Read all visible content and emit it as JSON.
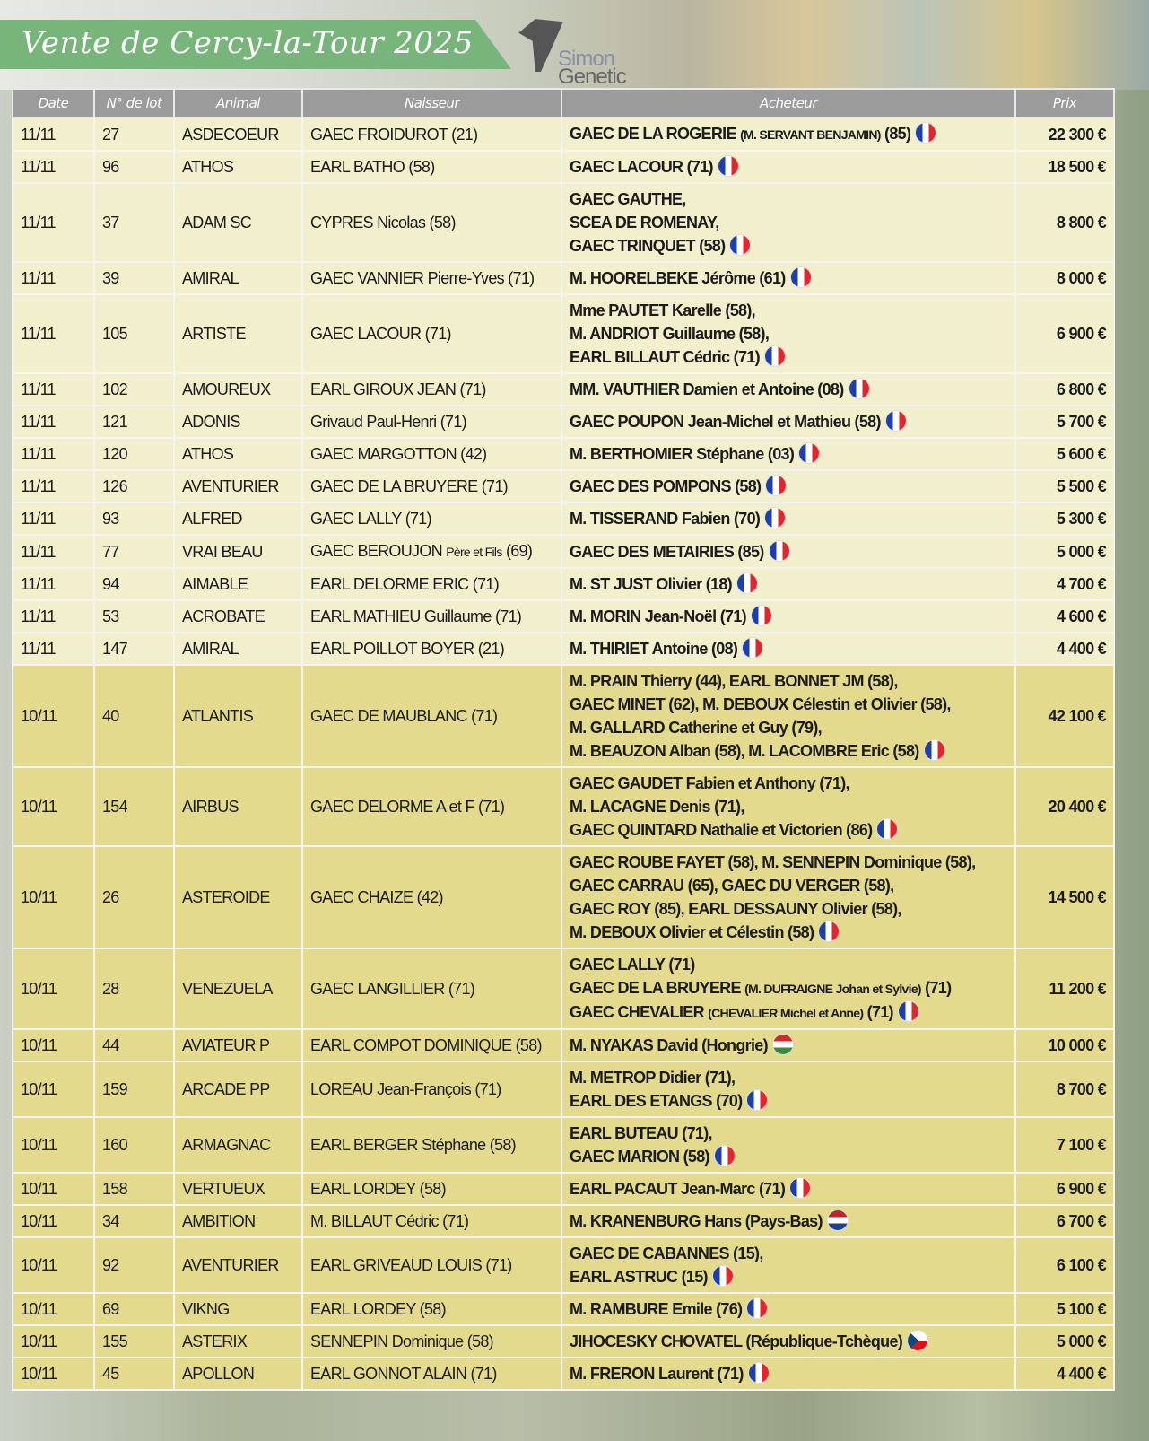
{
  "title": "Vente de Cercy-la-Tour 2025",
  "logo": {
    "line1": "Simon",
    "line2": "Genetic"
  },
  "colors": {
    "header": "#9b9b9b",
    "row_11_11": "#f1efcc",
    "row_10_11": "#e3da8d",
    "banner": "#78b57a"
  },
  "columns": [
    "Date",
    "N° de lot",
    "Animal",
    "Naisseur",
    "Acheteur",
    "Prix"
  ],
  "rows": [
    {
      "date": "11/11",
      "lot": "27",
      "animal": "ASDECOEUR",
      "naisseur": [
        {
          "t": "GAEC FROIDUROT (21)"
        }
      ],
      "acheteur": [
        [
          {
            "t": "GAEC DE LA ROGERIE "
          },
          {
            "t": "(M. SERVANT BENJAMIN)",
            "s": true
          },
          {
            "t": " (85)"
          }
        ]
      ],
      "flag": "fr",
      "prix": "22 300 €"
    },
    {
      "date": "11/11",
      "lot": "96",
      "animal": "ATHOS",
      "naisseur": [
        {
          "t": "EARL BATHO (58)"
        }
      ],
      "acheteur": [
        [
          {
            "t": "GAEC LACOUR (71)"
          }
        ]
      ],
      "flag": "fr",
      "prix": "18 500 €"
    },
    {
      "date": "11/11",
      "lot": "37",
      "animal": "ADAM SC",
      "naisseur": [
        {
          "t": "CYPRES Nicolas (58)"
        }
      ],
      "acheteur": [
        [
          {
            "t": "GAEC GAUTHE,"
          }
        ],
        [
          {
            "t": "SCEA DE ROMENAY,"
          }
        ],
        [
          {
            "t": "GAEC TRINQUET (58)"
          }
        ]
      ],
      "flag": "fr",
      "prix": "8 800 €"
    },
    {
      "date": "11/11",
      "lot": "39",
      "animal": "AMIRAL",
      "naisseur": [
        {
          "t": "GAEC VANNIER Pierre-Yves (71)"
        }
      ],
      "acheteur": [
        [
          {
            "t": "M. HOORELBEKE Jérôme (61)"
          }
        ]
      ],
      "flag": "fr",
      "prix": "8 000 €"
    },
    {
      "date": "11/11",
      "lot": "105",
      "animal": "ARTISTE",
      "naisseur": [
        {
          "t": "GAEC LACOUR (71)"
        }
      ],
      "acheteur": [
        [
          {
            "t": "Mme PAUTET Karelle (58),"
          }
        ],
        [
          {
            "t": "M. ANDRIOT Guillaume (58),"
          }
        ],
        [
          {
            "t": "EARL BILLAUT Cédric (71)"
          }
        ]
      ],
      "flag": "fr",
      "prix": "6 900 €"
    },
    {
      "date": "11/11",
      "lot": "102",
      "animal": "AMOUREUX",
      "naisseur": [
        {
          "t": "EARL GIROUX JEAN (71)"
        }
      ],
      "acheteur": [
        [
          {
            "t": "MM. VAUTHIER Damien et Antoine (08)"
          }
        ]
      ],
      "flag": "fr",
      "prix": "6 800 €"
    },
    {
      "date": "11/11",
      "lot": "121",
      "animal": "ADONIS",
      "naisseur": [
        {
          "t": "Grivaud Paul-Henri (71)"
        }
      ],
      "acheteur": [
        [
          {
            "t": "GAEC POUPON Jean-Michel et Mathieu (58)"
          }
        ]
      ],
      "flag": "fr",
      "prix": "5 700 €"
    },
    {
      "date": "11/11",
      "lot": "120",
      "animal": "ATHOS",
      "naisseur": [
        {
          "t": "GAEC MARGOTTON (42)"
        }
      ],
      "acheteur": [
        [
          {
            "t": "M. BERTHOMIER Stéphane (03)"
          }
        ]
      ],
      "flag": "fr",
      "prix": "5 600 €"
    },
    {
      "date": "11/11",
      "lot": "126",
      "animal": "AVENTURIER",
      "naisseur": [
        {
          "t": "GAEC DE LA BRUYERE (71)"
        }
      ],
      "acheteur": [
        [
          {
            "t": "GAEC DES POMPONS (58)"
          }
        ]
      ],
      "flag": "fr",
      "prix": "5 500 €"
    },
    {
      "date": "11/11",
      "lot": "93",
      "animal": "ALFRED",
      "naisseur": [
        {
          "t": "GAEC LALLY (71)"
        }
      ],
      "acheteur": [
        [
          {
            "t": "M. TISSERAND Fabien (70)"
          }
        ]
      ],
      "flag": "fr",
      "prix": "5 300 €"
    },
    {
      "date": "11/11",
      "lot": "77",
      "animal": "VRAI BEAU",
      "naisseur": [
        {
          "t": "GAEC BEROUJON "
        },
        {
          "t": "Père et Fils",
          "s": true
        },
        {
          "t": " (69)"
        }
      ],
      "acheteur": [
        [
          {
            "t": "GAEC DES METAIRIES (85)"
          }
        ]
      ],
      "flag": "fr",
      "prix": "5 000 €"
    },
    {
      "date": "11/11",
      "lot": "94",
      "animal": "AIMABLE",
      "naisseur": [
        {
          "t": "EARL DELORME ERIC (71)"
        }
      ],
      "acheteur": [
        [
          {
            "t": "M. ST JUST Olivier (18)"
          }
        ]
      ],
      "flag": "fr",
      "prix": "4 700 €"
    },
    {
      "date": "11/11",
      "lot": "53",
      "animal": "ACROBATE",
      "naisseur": [
        {
          "t": "EARL MATHIEU Guillaume (71)"
        }
      ],
      "acheteur": [
        [
          {
            "t": "M. MORIN Jean-Noël (71)"
          }
        ]
      ],
      "flag": "fr",
      "prix": "4 600 €"
    },
    {
      "date": "11/11",
      "lot": "147",
      "animal": "AMIRAL",
      "naisseur": [
        {
          "t": "EARL POILLOT BOYER (21)"
        }
      ],
      "acheteur": [
        [
          {
            "t": "M. THIRIET Antoine (08)"
          }
        ]
      ],
      "flag": "fr",
      "prix": "4 400 €"
    },
    {
      "date": "10/11",
      "lot": "40",
      "animal": "ATLANTIS",
      "naisseur": [
        {
          "t": "GAEC DE MAUBLANC (71)"
        }
      ],
      "acheteur": [
        [
          {
            "t": "M. PRAIN Thierry (44),  EARL BONNET JM (58),"
          }
        ],
        [
          {
            "t": "GAEC MINET (62), M. DEBOUX Célestin et Olivier (58),"
          }
        ],
        [
          {
            "t": "M. GALLARD Catherine et Guy (79),"
          }
        ],
        [
          {
            "t": "M. BEAUZON Alban (58),  M. LACOMBRE Eric (58)"
          }
        ]
      ],
      "flag": "fr",
      "prix": "42 100 €"
    },
    {
      "date": "10/11",
      "lot": "154",
      "animal": "AIRBUS",
      "naisseur": [
        {
          "t": "GAEC DELORME A et F (71)"
        }
      ],
      "acheteur": [
        [
          {
            "t": "GAEC GAUDET Fabien et Anthony (71),"
          }
        ],
        [
          {
            "t": "M. LACAGNE Denis (71),"
          }
        ],
        [
          {
            "t": "GAEC QUINTARD Nathalie et Victorien (86)"
          }
        ]
      ],
      "flag": "fr",
      "prix": "20 400 €"
    },
    {
      "date": "10/11",
      "lot": "26",
      "animal": "ASTEROIDE",
      "naisseur": [
        {
          "t": "GAEC CHAIZE (42)"
        }
      ],
      "acheteur": [
        [
          {
            "t": "GAEC ROUBE FAYET (58), M. SENNEPIN Dominique (58),"
          }
        ],
        [
          {
            "t": "GAEC CARRAU (65), GAEC DU VERGER (58),"
          }
        ],
        [
          {
            "t": "GAEC ROY (85), EARL DESSAUNY Olivier (58),"
          }
        ],
        [
          {
            "t": "M. DEBOUX Olivier et Célestin (58)"
          }
        ]
      ],
      "flag": "fr",
      "prix": "14 500 €"
    },
    {
      "date": "10/11",
      "lot": "28",
      "animal": "VENEZUELA",
      "naisseur": [
        {
          "t": "GAEC LANGILLIER (71)"
        }
      ],
      "acheteur": [
        [
          {
            "t": "GAEC LALLY (71)"
          }
        ],
        [
          {
            "t": "GAEC DE LA BRUYERE "
          },
          {
            "t": "(M. DUFRAIGNE Johan et Sylvie)",
            "s": true
          },
          {
            "t": " (71)"
          }
        ],
        [
          {
            "t": "GAEC CHEVALIER "
          },
          {
            "t": "(CHEVALIER Michel et Anne)",
            "s": true
          },
          {
            "t": " (71)"
          }
        ]
      ],
      "flag": "fr",
      "prix": "11 200 €"
    },
    {
      "date": "10/11",
      "lot": "44",
      "animal": "AVIATEUR P",
      "naisseur": [
        {
          "t": "EARL COMPOT DOMINIQUE (58)"
        }
      ],
      "acheteur": [
        [
          {
            "t": "M. NYAKAS David (Hongrie)"
          }
        ]
      ],
      "flag": "hu",
      "prix": "10 000 €"
    },
    {
      "date": "10/11",
      "lot": "159",
      "animal": "ARCADE PP",
      "naisseur": [
        {
          "t": "LOREAU Jean-François (71)"
        }
      ],
      "acheteur": [
        [
          {
            "t": "M. METROP Didier (71),"
          }
        ],
        [
          {
            "t": "EARL DES ETANGS (70)"
          }
        ]
      ],
      "flag": "fr",
      "prix": "8 700 €"
    },
    {
      "date": "10/11",
      "lot": "160",
      "animal": "ARMAGNAC",
      "naisseur": [
        {
          "t": "EARL BERGER Stéphane (58)"
        }
      ],
      "acheteur": [
        [
          {
            "t": "EARL BUTEAU (71),"
          }
        ],
        [
          {
            "t": "GAEC MARION (58)"
          }
        ]
      ],
      "flag": "fr",
      "prix": "7 100 €"
    },
    {
      "date": "10/11",
      "lot": "158",
      "animal": "VERTUEUX",
      "naisseur": [
        {
          "t": "EARL LORDEY (58)"
        }
      ],
      "acheteur": [
        [
          {
            "t": "EARL PACAUT Jean-Marc (71)"
          }
        ]
      ],
      "flag": "fr",
      "prix": "6 900 €"
    },
    {
      "date": "10/11",
      "lot": "34",
      "animal": "AMBITION",
      "naisseur": [
        {
          "t": "M. BILLAUT Cédric (71)"
        }
      ],
      "acheteur": [
        [
          {
            "t": "M. KRANENBURG Hans (Pays-Bas)"
          }
        ]
      ],
      "flag": "nl",
      "prix": "6 700 €"
    },
    {
      "date": "10/11",
      "lot": "92",
      "animal": "AVENTURIER",
      "naisseur": [
        {
          "t": "EARL GRIVEAUD LOUIS (71)"
        }
      ],
      "acheteur": [
        [
          {
            "t": "GAEC DE CABANNES (15),"
          }
        ],
        [
          {
            "t": "EARL ASTRUC (15)"
          }
        ]
      ],
      "flag": "fr",
      "prix": "6 100 €"
    },
    {
      "date": "10/11",
      "lot": "69",
      "animal": "VIKNG",
      "naisseur": [
        {
          "t": "EARL LORDEY (58)"
        }
      ],
      "acheteur": [
        [
          {
            "t": "M. RAMBURE Emile (76)"
          }
        ]
      ],
      "flag": "fr",
      "prix": "5 100 €"
    },
    {
      "date": "10/11",
      "lot": "155",
      "animal": "ASTERIX",
      "naisseur": [
        {
          "t": "SENNEPIN Dominique (58)"
        }
      ],
      "acheteur": [
        [
          {
            "t": "JIHOCESKY CHOVATEL (République-Tchèque)"
          }
        ]
      ],
      "flag": "cz",
      "prix": "5 000 €"
    },
    {
      "date": "10/11",
      "lot": "45",
      "animal": "APOLLON",
      "naisseur": [
        {
          "t": "EARL GONNOT ALAIN (71)"
        }
      ],
      "acheteur": [
        [
          {
            "t": "M. FRERON Laurent (71)"
          }
        ]
      ],
      "flag": "fr",
      "prix": "4 400 €"
    }
  ]
}
